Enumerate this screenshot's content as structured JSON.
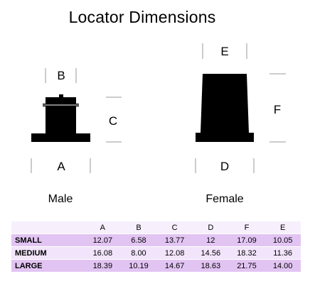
{
  "title": "Locator Dimensions",
  "colors": {
    "shape": "#000000",
    "guide": "#999999",
    "row_odd": "#e2c4f3",
    "row_even": "#f2e4fb",
    "header_bg": "#f7f0fc"
  },
  "male": {
    "label": "Male",
    "dims": {
      "width": "A",
      "cap": "B",
      "height": "C"
    }
  },
  "female": {
    "label": "Female",
    "dims": {
      "width": "D",
      "top": "E",
      "height": "F"
    }
  },
  "table": {
    "columns": [
      "",
      "A",
      "B",
      "C",
      "D",
      "F",
      "E"
    ],
    "rows": [
      {
        "label": "SMALL",
        "values": [
          "12.07",
          "6.58",
          "13.77",
          "12",
          "17.09",
          "10.05"
        ]
      },
      {
        "label": "MEDIUM",
        "values": [
          "16.08",
          "8.00",
          "12.08",
          "14.56",
          "18.32",
          "11.36"
        ]
      },
      {
        "label": "LARGE",
        "values": [
          "18.39",
          "10.19",
          "14.67",
          "18.63",
          "21.75",
          "14.00"
        ]
      }
    ]
  }
}
